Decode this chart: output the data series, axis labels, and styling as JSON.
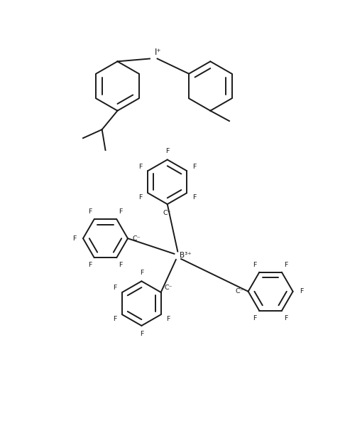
{
  "background_color": "#ffffff",
  "line_color": "#1a1a1a",
  "line_width": 1.4,
  "font_size": 7.5,
  "fig_width": 4.86,
  "fig_height": 6.27,
  "dpi": 100,
  "xlim": [
    0,
    10
  ],
  "ylim": [
    0,
    13
  ]
}
